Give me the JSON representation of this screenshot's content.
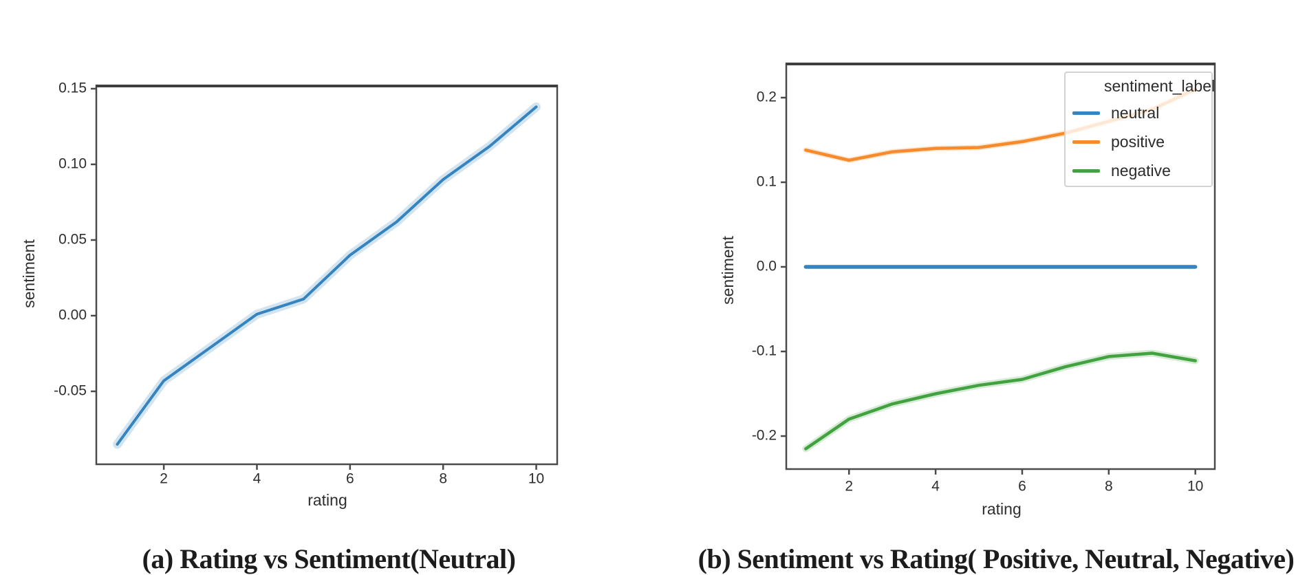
{
  "page": {
    "background": "#ffffff"
  },
  "colors": {
    "neutral": "#3584bf",
    "positive": "#f78b2c",
    "negative": "#42a23f",
    "spine": "#4a4a4a",
    "tick_text": "#2e2e2e"
  },
  "chart_data": [
    {
      "type": "line",
      "title": "(a) Rating vs Sentiment(Neutral)",
      "xlabel": "rating",
      "ylabel": "sentiment",
      "x": [
        1,
        2,
        3,
        4,
        5,
        6,
        7,
        8,
        9,
        10
      ],
      "series": [
        {
          "name": "neutral",
          "color": "#3584bf",
          "values": [
            -0.085,
            -0.043,
            -0.021,
            0.001,
            0.011,
            0.04,
            0.062,
            0.09,
            0.112,
            0.138
          ],
          "has_band": true
        }
      ],
      "xlim": [
        0.55,
        10.45
      ],
      "ylim": [
        -0.0982,
        0.1518
      ],
      "x_tick_values": [
        2,
        4,
        6,
        8,
        10
      ],
      "x_tick_labels": [
        "2",
        "4",
        "6",
        "8",
        "10"
      ],
      "y_tick_values": [
        0.15,
        0.1,
        0.05,
        0.0,
        -0.05
      ],
      "y_tick_labels": [
        "0.15",
        "0.10",
        "0.05",
        "0.00",
        "-0.05"
      ],
      "grid": false,
      "legend": null
    },
    {
      "type": "line",
      "title": "(b) Sentiment vs Rating( Positive, Neutral, Negative)",
      "xlabel": "rating",
      "ylabel": "sentiment",
      "x": [
        1,
        2,
        3,
        4,
        5,
        6,
        7,
        8,
        9,
        10
      ],
      "series": [
        {
          "name": "neutral",
          "color": "#3584bf",
          "values": [
            0.0,
            0.0,
            0.0,
            0.0,
            0.0,
            0.0,
            0.0,
            0.0,
            0.0,
            0.0
          ],
          "has_band": false
        },
        {
          "name": "positive",
          "color": "#f78b2c",
          "values": [
            0.138,
            0.126,
            0.136,
            0.14,
            0.141,
            0.148,
            0.158,
            0.172,
            0.186,
            0.21
          ],
          "has_band": true
        },
        {
          "name": "negative",
          "color": "#42a23f",
          "values": [
            -0.215,
            -0.18,
            -0.162,
            -0.15,
            -0.14,
            -0.133,
            -0.118,
            -0.106,
            -0.102,
            -0.111
          ],
          "has_band": true
        }
      ],
      "xlim": [
        0.55,
        10.45
      ],
      "ylim": [
        -0.239,
        0.2398
      ],
      "x_tick_values": [
        2,
        4,
        6,
        8,
        10
      ],
      "x_tick_labels": [
        "2",
        "4",
        "6",
        "8",
        "10"
      ],
      "y_tick_values": [
        0.2,
        0.1,
        0.0,
        -0.1,
        -0.2
      ],
      "y_tick_labels": [
        "0.2",
        "0.1",
        "0.0",
        "-0.1",
        "-0.2"
      ],
      "grid": false,
      "legend": {
        "title": "sentiment_label",
        "entries": [
          "neutral",
          "positive",
          "negative"
        ],
        "position": "upper right"
      }
    }
  ]
}
